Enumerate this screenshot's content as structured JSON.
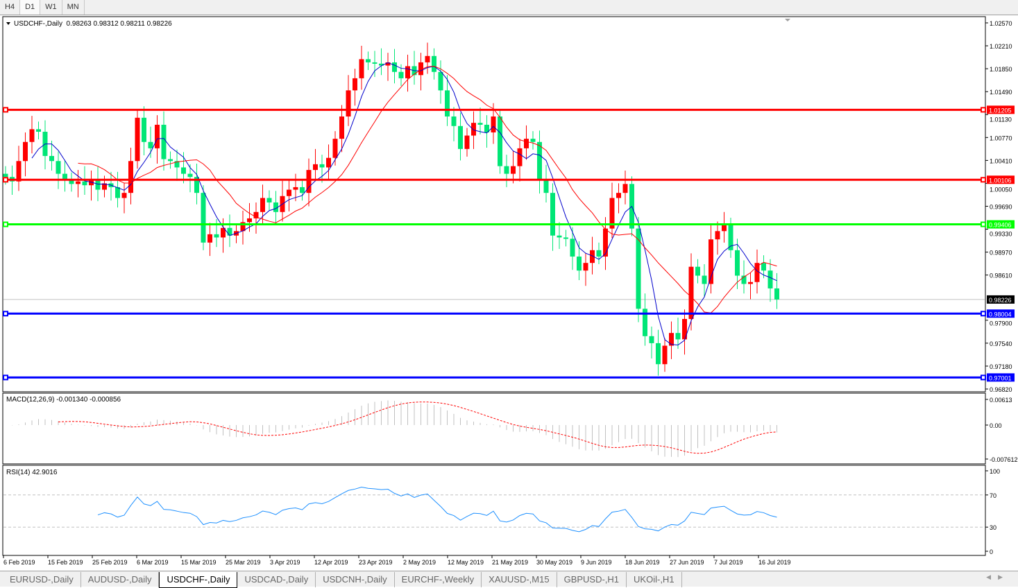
{
  "timeframes": [
    {
      "label": "H4",
      "active": false
    },
    {
      "label": "D1",
      "active": true
    },
    {
      "label": "W1",
      "active": false
    },
    {
      "label": "MN",
      "active": false
    }
  ],
  "chart_title": "USDCHF-,Daily  0.98263 0.98312 0.98211 0.98226",
  "macd_label": "MACD(12,26,9) -0.001340 -0.000856",
  "rsi_label": "RSI(14) 42.9016",
  "chart_data": {
    "type": "candlestick",
    "symbol": "USDCHF-",
    "timeframe": "Daily",
    "last_ohlc": {
      "open": 0.98263,
      "high": 0.98312,
      "low": 0.98211,
      "close": 0.98226
    },
    "ylim": [
      0.9682,
      1.0257
    ],
    "price_ticks": [
      "1.02570",
      "1.02210",
      "1.01850",
      "1.01490",
      "1.01130",
      "1.00770",
      "1.00410",
      "1.00050",
      "0.99690",
      "0.99330",
      "0.98970",
      "0.98610",
      "0.98226",
      "0.97900",
      "0.97540",
      "0.97180",
      "0.96820"
    ],
    "x_tick_labels": [
      "6 Feb 2019",
      "15 Feb 2019",
      "25 Feb 2019",
      "6 Mar 2019",
      "15 Mar 2019",
      "25 Mar 2019",
      "3 Apr 2019",
      "12 Apr 2019",
      "23 Apr 2019",
      "2 May 2019",
      "12 May 2019",
      "21 May 2019",
      "30 May 2019",
      "9 Jun 2019",
      "18 Jun 2019",
      "27 Jun 2019",
      "7 Jul 2019",
      "16 Jul 2019"
    ],
    "colors": {
      "bull": "#ff0000",
      "bear": "#00e676",
      "ma_fast": "#0000cc",
      "ma_slow": "#ff0000"
    },
    "closes": [
      1.0015,
      1.0008,
      1.004,
      1.007,
      1.009,
      1.0086,
      1.0048,
      1.004,
      1.002,
      1.001,
      1.0004,
      1.0008,
      1.0002,
      1.001,
      0.9995,
      1.0005,
      0.9999,
      0.9982,
      0.999,
      1.004,
      1.0108,
      1.007,
      1.006,
      1.0097,
      1.0043,
      1.004,
      1.003,
      1.002,
      1.0015,
      0.999,
      0.9912,
      0.9925,
      0.992,
      0.9935,
      0.9923,
      0.993,
      0.9944,
      0.995,
      0.996,
      0.9982,
      0.9975,
      0.996,
      0.9985,
      0.9995,
      0.9999,
      0.999,
      1.0026,
      1.0035,
      1.003,
      1.0045,
      1.0075,
      1.011,
      1.0151,
      1.017,
      1.02,
      1.0195,
      1.0193,
      1.019,
      1.0195,
      1.018,
      1.017,
      1.0189,
      1.0175,
      1.0195,
      1.0205,
      1.018,
      1.0151,
      1.011,
      1.0095,
      1.0059,
      1.008,
      1.01,
      1.0097,
      1.0085,
      1.011,
      1.0032,
      1.002,
      1.0032,
      1.006,
      1.0075,
      1.007,
      1.001,
      0.999,
      0.9923,
      0.992,
      0.9918,
      0.989,
      0.9868,
      0.988,
      0.99,
      0.989,
      0.9934,
      0.9982,
      0.999,
      1.0004,
      0.9934,
      0.9808,
      0.9765,
      0.9754,
      0.9721,
      0.975,
      0.977,
      0.976,
      0.9792,
      0.9874,
      0.986,
      0.9847,
      0.9917,
      0.993,
      0.9939,
      0.99,
      0.986,
      0.9847,
      0.985,
      0.988,
      0.9868,
      0.984,
      0.98226
    ],
    "horizontal_lines": [
      {
        "price": 1.01205,
        "label": "1.01205",
        "color": "#ff0000"
      },
      {
        "price": 1.00106,
        "label": "1.00106",
        "color": "#ff0000"
      },
      {
        "price": 0.99406,
        "label": "0.99406",
        "color": "#00ff00"
      },
      {
        "price": 0.98004,
        "label": "0.98004",
        "color": "#0000ff"
      },
      {
        "price": 0.97001,
        "label": "0.97001",
        "color": "#0000ff"
      }
    ],
    "current_price": {
      "price": 0.98226,
      "label": "0.98226"
    },
    "macd": {
      "fast": 12,
      "slow": 26,
      "signal": 9,
      "ticks": [
        "0.00613",
        "0.00",
        "-0.007612"
      ],
      "range": [
        -0.007612,
        0.00613
      ]
    },
    "rsi": {
      "period": 14,
      "ticks": [
        "100",
        "70",
        "30",
        "0"
      ],
      "levels": [
        70,
        30
      ]
    }
  },
  "symbol_tabs": [
    {
      "label": "EURUSD-,Daily",
      "active": false
    },
    {
      "label": "AUDUSD-,Daily",
      "active": false
    },
    {
      "label": "USDCHF-,Daily",
      "active": true
    },
    {
      "label": "USDCAD-,Daily",
      "active": false
    },
    {
      "label": "USDCNH-,Daily",
      "active": false
    },
    {
      "label": "EURCHF-,Weekly",
      "active": false
    },
    {
      "label": "XAUUSD-,M15",
      "active": false
    },
    {
      "label": "GBPUSD-,H1",
      "active": false
    },
    {
      "label": "UKOil-,H1",
      "active": false
    }
  ]
}
